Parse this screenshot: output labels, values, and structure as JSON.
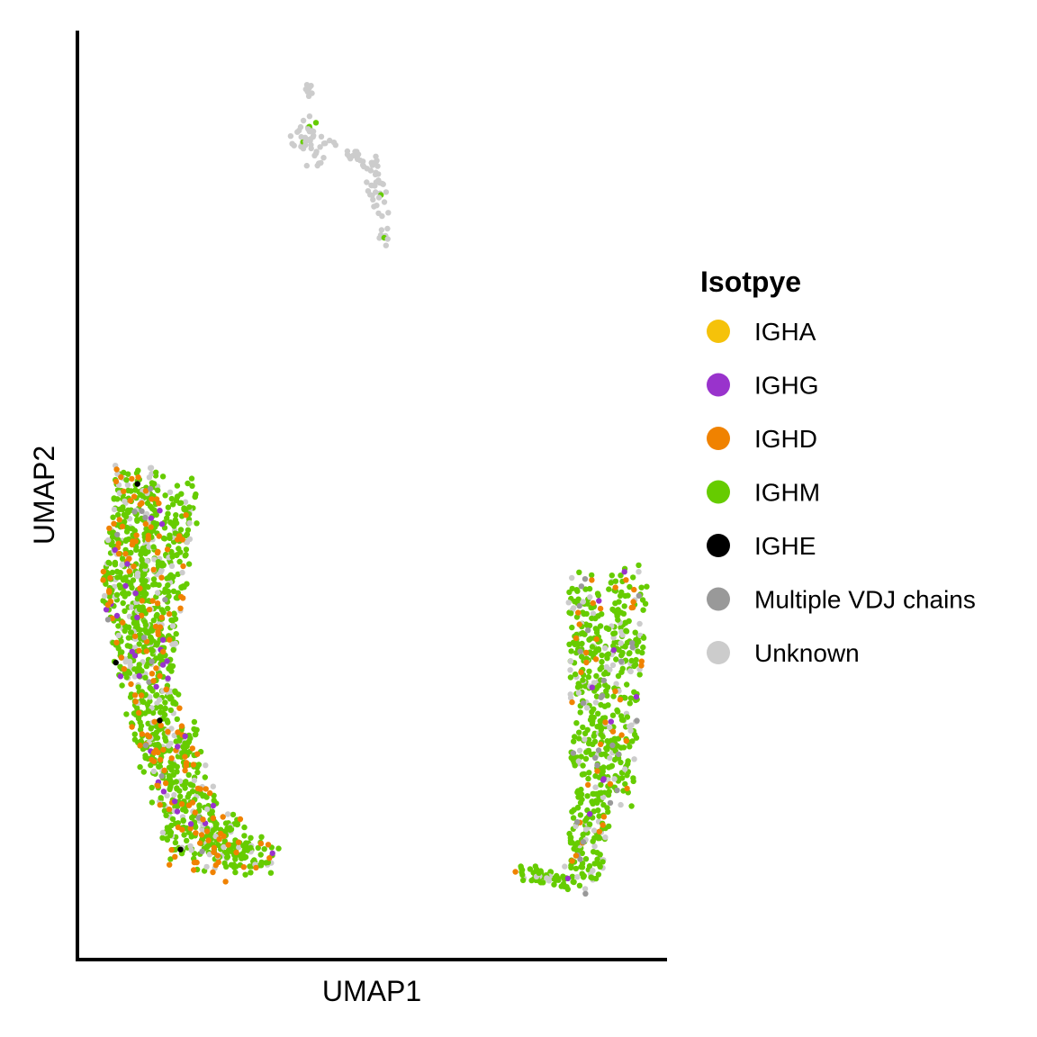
{
  "chart_data": {
    "type": "scatter",
    "xlabel": "UMAP1",
    "ylabel": "UMAP2",
    "xticks": "none",
    "yticks": "none",
    "grid": false,
    "legend": {
      "title": "Isotpye",
      "placement": "right",
      "entries": [
        {
          "name": "IGHA",
          "color": "#F5C20A"
        },
        {
          "name": "IGHG",
          "color": "#9933CC"
        },
        {
          "name": "IGHD",
          "color": "#F08200"
        },
        {
          "name": "IGHM",
          "color": "#66CC00"
        },
        {
          "name": "IGHE",
          "color": "#000000"
        },
        {
          "name": "Multiple VDJ chains",
          "color": "#999999"
        },
        {
          "name": "Unknown",
          "color": "#CCCCCC"
        }
      ]
    },
    "xlim": [
      0,
      100
    ],
    "ylim": [
      0,
      100
    ],
    "clusters": [
      {
        "name": "upper",
        "seed": 11,
        "composition": {
          "Unknown": 0.96,
          "IGHM": 0.04
        },
        "strokes": [
          {
            "x": [
              39.2,
              39.2
            ],
            "y": [
              94.5,
              93.0
            ],
            "w": 0.6,
            "n": 10
          },
          {
            "x": [
              37.5,
              40.0
            ],
            "y": [
              87.5,
              90.0
            ],
            "w": 1.8,
            "n": 30
          },
          {
            "x": [
              40.0,
              42.5
            ],
            "y": [
              86.0,
              88.0
            ],
            "w": 1.5,
            "n": 16
          },
          {
            "x": [
              46.0,
              48.5
            ],
            "y": [
              87.0,
              86.0
            ],
            "w": 1.0,
            "n": 12
          },
          {
            "x": [
              49.5,
              52.0
            ],
            "y": [
              86.5,
              80.0
            ],
            "w": 1.4,
            "n": 40
          },
          {
            "x": [
              52.0,
              52.0
            ],
            "y": [
              78.5,
              76.5
            ],
            "w": 0.8,
            "n": 10
          }
        ]
      },
      {
        "name": "left",
        "seed": 23,
        "composition": {
          "IGHM": 0.7,
          "Unknown": 0.15,
          "IGHD": 0.11,
          "IGHG": 0.03,
          "Multiple VDJ chains": 0.007,
          "IGHE": 0.003
        },
        "strokes": [
          {
            "x": [
              10.0,
              7.5
            ],
            "y": [
              52.0,
              37.5
            ],
            "w": 3.6,
            "n": 320
          },
          {
            "x": [
              16.5,
              12.5
            ],
            "y": [
              50.0,
              33.5
            ],
            "w": 4.0,
            "n": 320
          },
          {
            "x": [
              10.0,
              15.0
            ],
            "y": [
              35.0,
              22.0
            ],
            "w": 4.4,
            "n": 300
          },
          {
            "x": [
              15.0,
              21.0
            ],
            "y": [
              24.0,
              10.5
            ],
            "w": 4.8,
            "n": 300
          },
          {
            "x": [
              22.5,
              31.5
            ],
            "y": [
              14.5,
              10.0
            ],
            "w": 3.4,
            "n": 140
          }
        ]
      },
      {
        "name": "right",
        "seed": 37,
        "composition": {
          "IGHM": 0.74,
          "Unknown": 0.15,
          "IGHD": 0.06,
          "Multiple VDJ chains": 0.03,
          "IGHG": 0.02
        },
        "strokes": [
          {
            "x": [
              86.0,
              86.5
            ],
            "y": [
              40.5,
              20.0
            ],
            "w": 2.8,
            "n": 230
          },
          {
            "x": [
              93.5,
              91.0
            ],
            "y": [
              41.0,
              17.5
            ],
            "w": 3.2,
            "n": 260
          },
          {
            "x": [
              88.0,
              85.5
            ],
            "y": [
              20.0,
              8.0
            ],
            "w": 3.2,
            "n": 160
          },
          {
            "x": [
              75.0,
              84.0
            ],
            "y": [
              9.5,
              8.2
            ],
            "w": 1.4,
            "n": 55
          }
        ]
      }
    ]
  }
}
